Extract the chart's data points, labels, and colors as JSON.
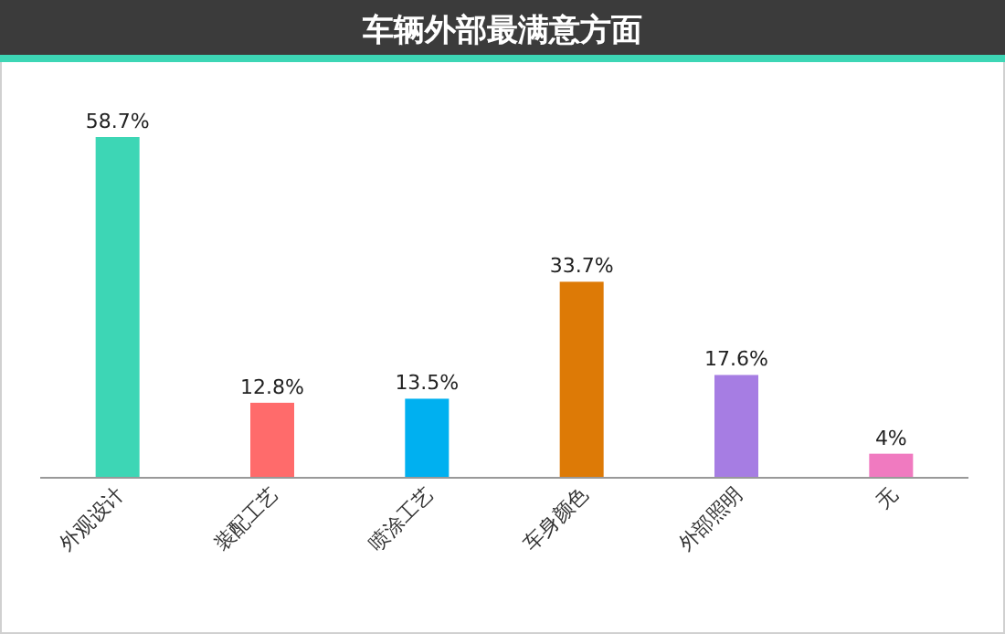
{
  "chart_data": {
    "type": "bar",
    "title": "车辆外部最满意方面",
    "categories": [
      "外观设计",
      "装配工艺",
      "喷涂工艺",
      "车身颜色",
      "外部照明",
      "无"
    ],
    "values": [
      58.7,
      12.8,
      13.5,
      33.7,
      17.6,
      4
    ],
    "colors": [
      "#3dd6b5",
      "#ff6b6b",
      "#00b0f0",
      "#dd7a06",
      "#a67de3",
      "#f07ac0"
    ],
    "value_labels": [
      "58.7%",
      "12.8%",
      "13.5%",
      "33.7%",
      "17.6%",
      "4%"
    ]
  }
}
